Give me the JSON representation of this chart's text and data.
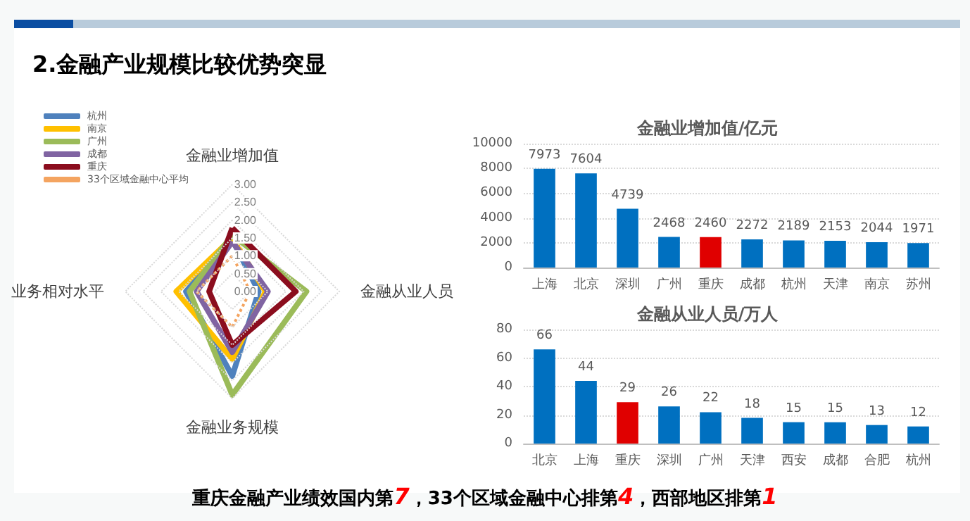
{
  "chart_data": [
    {
      "type": "radar",
      "title": "2.金融产业规模比较优势突显",
      "annotations": [
        "重庆金融产业绩效国内第7，33个区域金融中心排第4，西部地区排第1"
      ],
      "categories": [
        "金融业增加值",
        "金融从业人员",
        "金融业务规模",
        "业务相对水平"
      ],
      "ylim": [
        0,
        3
      ],
      "yticks": [
        {
          "value": 0,
          "label": "0.00"
        },
        {
          "value": 0.5,
          "label": "0.50"
        },
        {
          "value": 1,
          "label": "1.00"
        },
        {
          "value": 1.5,
          "label": "1.50"
        },
        {
          "value": 2,
          "label": "2.00"
        },
        {
          "value": 2.5,
          "label": "2.50"
        },
        {
          "value": 3,
          "label": "3.00"
        }
      ],
      "grid": true,
      "legend": "top left",
      "marker": "none",
      "series": [
        {
          "name": "杭州",
          "color": "#4f81bd",
          "values": [
            1.45,
            0.74,
            2.37,
            1.3
          ]
        },
        {
          "name": "南京",
          "color": "#ffc000",
          "values": [
            1.5,
            0.93,
            1.9,
            1.57
          ]
        },
        {
          "name": "广州",
          "color": "#9bbb59",
          "values": [
            1.58,
            2.08,
            2.9,
            1.2
          ]
        },
        {
          "name": "成都",
          "color": "#8064a2",
          "values": [
            1.4,
            1.0,
            1.7,
            1.0
          ]
        },
        {
          "name": "重庆",
          "color": "#8b0d1e",
          "values": [
            1.78,
            1.78,
            1.5,
            0.65
          ]
        },
        {
          "name": "33个区域金融中心平均",
          "color": "#f4a460",
          "line_style": "dotted",
          "values": [
            1.0,
            0.5,
            1.0,
            1.0
          ]
        }
      ]
    },
    {
      "type": "bar",
      "title": "金融业增加值/亿元",
      "categories": [
        "上海",
        "北京",
        "深圳",
        "广州",
        "重庆",
        "成都",
        "杭州",
        "天津",
        "南京",
        "苏州"
      ],
      "values": [
        7973,
        7604,
        4739,
        2468,
        2460,
        2272,
        2189,
        2153,
        2044,
        1971
      ],
      "colors": [
        "#0070c0",
        "#0070c0",
        "#0070c0",
        "#0070c0",
        "#e00000",
        "#0070c0",
        "#0070c0",
        "#0070c0",
        "#0070c0",
        "#0070c0"
      ],
      "ylim": [
        0,
        10000
      ],
      "yticks": [
        0,
        2000,
        4000,
        6000,
        8000,
        10000
      ],
      "grid": "y",
      "data_labels": true
    },
    {
      "type": "bar",
      "title": "金融从业人员/万人",
      "categories": [
        "北京",
        "上海",
        "重庆",
        "深圳",
        "广州",
        "天津",
        "西安",
        "成都",
        "合肥",
        "杭州"
      ],
      "values": [
        66,
        44,
        29,
        26,
        22,
        18,
        15,
        15,
        13,
        12
      ],
      "colors": [
        "#0070c0",
        "#0070c0",
        "#e00000",
        "#0070c0",
        "#0070c0",
        "#0070c0",
        "#0070c0",
        "#0070c0",
        "#0070c0",
        "#0070c0"
      ],
      "ylim": [
        0,
        80
      ],
      "yticks": [
        0,
        20,
        40,
        60,
        80
      ],
      "grid": "y",
      "data_labels": true
    }
  ]
}
